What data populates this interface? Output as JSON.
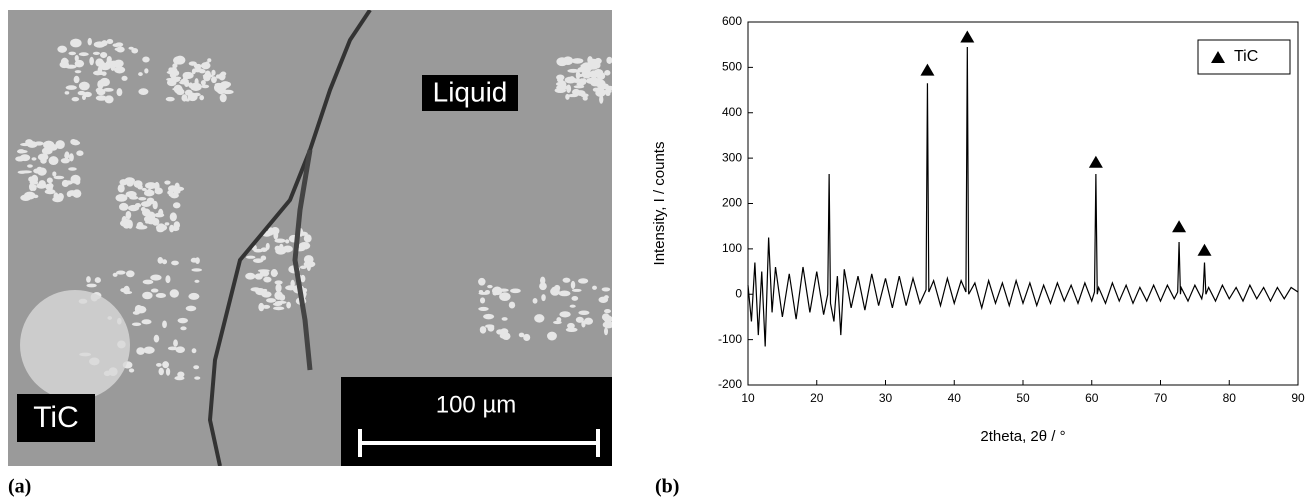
{
  "image_panel": {
    "panel_label": "(a)",
    "labels": [
      "Liquid",
      "TiC"
    ],
    "scale_bar": "100 µm"
  },
  "chart_data": {
    "type": "line",
    "panel_label": "(b)",
    "x_label": "2theta, 2θ / °",
    "y_label": "Intensity, I / counts",
    "xlim": [
      10,
      90
    ],
    "ylim": [
      -200,
      600
    ],
    "xticks": [
      10,
      20,
      30,
      40,
      50,
      60,
      70,
      80,
      90
    ],
    "yticks": [
      -200,
      -100,
      0,
      100,
      200,
      300,
      400,
      500,
      600
    ],
    "legend": "upper right",
    "series": [
      {
        "color": "#000000",
        "x": [
          10,
          10.5,
          11,
          11.5,
          12,
          12.5,
          13,
          13.5,
          14,
          15,
          16,
          17,
          18,
          19,
          20,
          21,
          21.6,
          21.8,
          22,
          22.5,
          23,
          23.5,
          24,
          25,
          26,
          27,
          28,
          29,
          30,
          31,
          32,
          33,
          34,
          35,
          35.9,
          36.1,
          36.3,
          37,
          38,
          39,
          40,
          41,
          41.7,
          41.9,
          42.1,
          43,
          44,
          45,
          46,
          47,
          48,
          49,
          50,
          51,
          52,
          53,
          54,
          55,
          56,
          57,
          58,
          59,
          60,
          60.4,
          60.6,
          60.8,
          61,
          62,
          63,
          64,
          65,
          66,
          67,
          68,
          69,
          70,
          71,
          72,
          72.5,
          72.7,
          72.9,
          73,
          74,
          75,
          76,
          76.2,
          76.4,
          76.6,
          77,
          78,
          79,
          80,
          81,
          82,
          83,
          84,
          85,
          86,
          87,
          88,
          89,
          90
        ],
        "values": [
          20,
          -60,
          70,
          -90,
          50,
          -115,
          125,
          -40,
          60,
          -50,
          45,
          -55,
          60,
          -40,
          50,
          -45,
          0,
          265,
          -20,
          -60,
          40,
          -90,
          55,
          -30,
          40,
          -35,
          45,
          -25,
          35,
          -30,
          40,
          -25,
          35,
          -20,
          10,
          465,
          5,
          30,
          -25,
          35,
          -20,
          30,
          5,
          545,
          0,
          25,
          -30,
          30,
          -20,
          25,
          -25,
          30,
          -20,
          25,
          -25,
          20,
          -20,
          25,
          -15,
          20,
          -20,
          25,
          -15,
          5,
          265,
          0,
          15,
          -20,
          25,
          -15,
          20,
          -20,
          15,
          -15,
          20,
          -15,
          20,
          -10,
          5,
          115,
          0,
          15,
          -15,
          20,
          -10,
          5,
          70,
          0,
          15,
          -15,
          20,
          -10,
          15,
          -15,
          20,
          -10,
          15,
          -15,
          15,
          -10,
          15,
          5
        ]
      },
      {
        "name": "TiC",
        "type": "scatter",
        "marker": "triangle",
        "color": "#000000",
        "x": [
          36.1,
          41.9,
          60.6,
          72.7,
          76.4
        ],
        "values": [
          495,
          568,
          292,
          150,
          98
        ]
      }
    ]
  }
}
